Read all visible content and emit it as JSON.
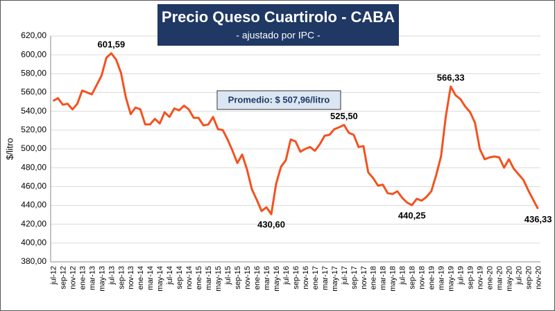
{
  "chart_data": {
    "type": "line",
    "title": "Precio Queso Cuartirolo - CABA",
    "subtitle": "- ajustado por IPC -",
    "ylabel": "$/litro",
    "annotation": "Promedio: $ 507,96/litro",
    "color": "#f4511e",
    "grid": true,
    "ylim": [
      380,
      620
    ],
    "yticks": [
      {
        "value": 380,
        "label": "380,00"
      },
      {
        "value": 400,
        "label": "400,00"
      },
      {
        "value": 420,
        "label": "420,00"
      },
      {
        "value": 440,
        "label": "440,00"
      },
      {
        "value": 460,
        "label": "460,00"
      },
      {
        "value": 480,
        "label": "480,00"
      },
      {
        "value": 500,
        "label": "500,00"
      },
      {
        "value": 520,
        "label": "520,00"
      },
      {
        "value": 540,
        "label": "540,00"
      },
      {
        "value": 560,
        "label": "560,00"
      },
      {
        "value": 580,
        "label": "580,00"
      },
      {
        "value": 600,
        "label": "600,00"
      },
      {
        "value": 620,
        "label": "620,00"
      }
    ],
    "categories": [
      "jul-12",
      null,
      "sep-12",
      null,
      "nov-12",
      null,
      "ene-13",
      null,
      "mar-13",
      null,
      "may-13",
      null,
      "jul-13",
      null,
      "sep-13",
      null,
      "nov-13",
      null,
      "ene-14",
      null,
      "mar-14",
      null,
      "may-14",
      null,
      "jul-14",
      null,
      "sep-14",
      null,
      "nov-14",
      null,
      "ene-15",
      null,
      "mar-15",
      null,
      "may-15",
      null,
      "jul-15",
      null,
      "sep-15",
      null,
      "nov-15",
      null,
      "ene-16",
      null,
      "mar-16",
      null,
      "may-16",
      null,
      "jul-16",
      null,
      "sep-16",
      null,
      "nov-16",
      null,
      "ene-17",
      null,
      "mar-17",
      null,
      "may-17",
      null,
      "jul-17",
      null,
      "sep-17",
      null,
      "nov-17",
      null,
      "ene-18",
      null,
      "mar-18",
      null,
      "may-18",
      null,
      "jul-18",
      null,
      "sep-18",
      null,
      "nov-18",
      null,
      "ene-19",
      null,
      "mar-19",
      null,
      "may-19",
      null,
      "jul-19",
      null,
      "sep-19",
      null,
      "nov-19",
      null,
      "ene-20",
      null,
      "mar-20",
      null,
      "may-20",
      null,
      "jul-20",
      null,
      "sep-20",
      null,
      "nov-20"
    ],
    "values": [
      551,
      554,
      547,
      548,
      542,
      548,
      562,
      560,
      558,
      568,
      578,
      597,
      601.59,
      595,
      581,
      555,
      537,
      544,
      542,
      526,
      526,
      532,
      527,
      539,
      534,
      543,
      541,
      546,
      542,
      533,
      533,
      525,
      526,
      534,
      521,
      520,
      510,
      498,
      485,
      494,
      478,
      457,
      446,
      434,
      438,
      430.6,
      463,
      481,
      488,
      510,
      508,
      497,
      500,
      502,
      498,
      505,
      514,
      515,
      521,
      523,
      525.5,
      517,
      515,
      502,
      503,
      475,
      469,
      461,
      462,
      453,
      452,
      455,
      448,
      443,
      440.25,
      447,
      445,
      449,
      455,
      472,
      492,
      535,
      566.33,
      557,
      553,
      545,
      539,
      528,
      500,
      489,
      491,
      492,
      491,
      480,
      489,
      479,
      473,
      467,
      456,
      446,
      436.33
    ],
    "value_labels": [
      null,
      null,
      null,
      null,
      null,
      null,
      null,
      null,
      null,
      null,
      null,
      null,
      "601,59",
      null,
      null,
      null,
      null,
      null,
      null,
      null,
      null,
      null,
      null,
      null,
      null,
      null,
      null,
      null,
      null,
      null,
      null,
      null,
      null,
      null,
      null,
      null,
      null,
      null,
      null,
      null,
      null,
      null,
      null,
      null,
      null,
      "430,60",
      null,
      null,
      null,
      null,
      null,
      null,
      null,
      null,
      null,
      null,
      null,
      null,
      null,
      null,
      "525,50",
      null,
      null,
      null,
      null,
      null,
      null,
      null,
      null,
      null,
      null,
      null,
      null,
      null,
      "440,25",
      null,
      null,
      null,
      null,
      null,
      null,
      null,
      "566,33",
      null,
      null,
      null,
      null,
      null,
      null,
      null,
      null,
      null,
      null,
      null,
      null,
      null,
      null,
      null,
      null,
      null,
      "436,33"
    ]
  }
}
